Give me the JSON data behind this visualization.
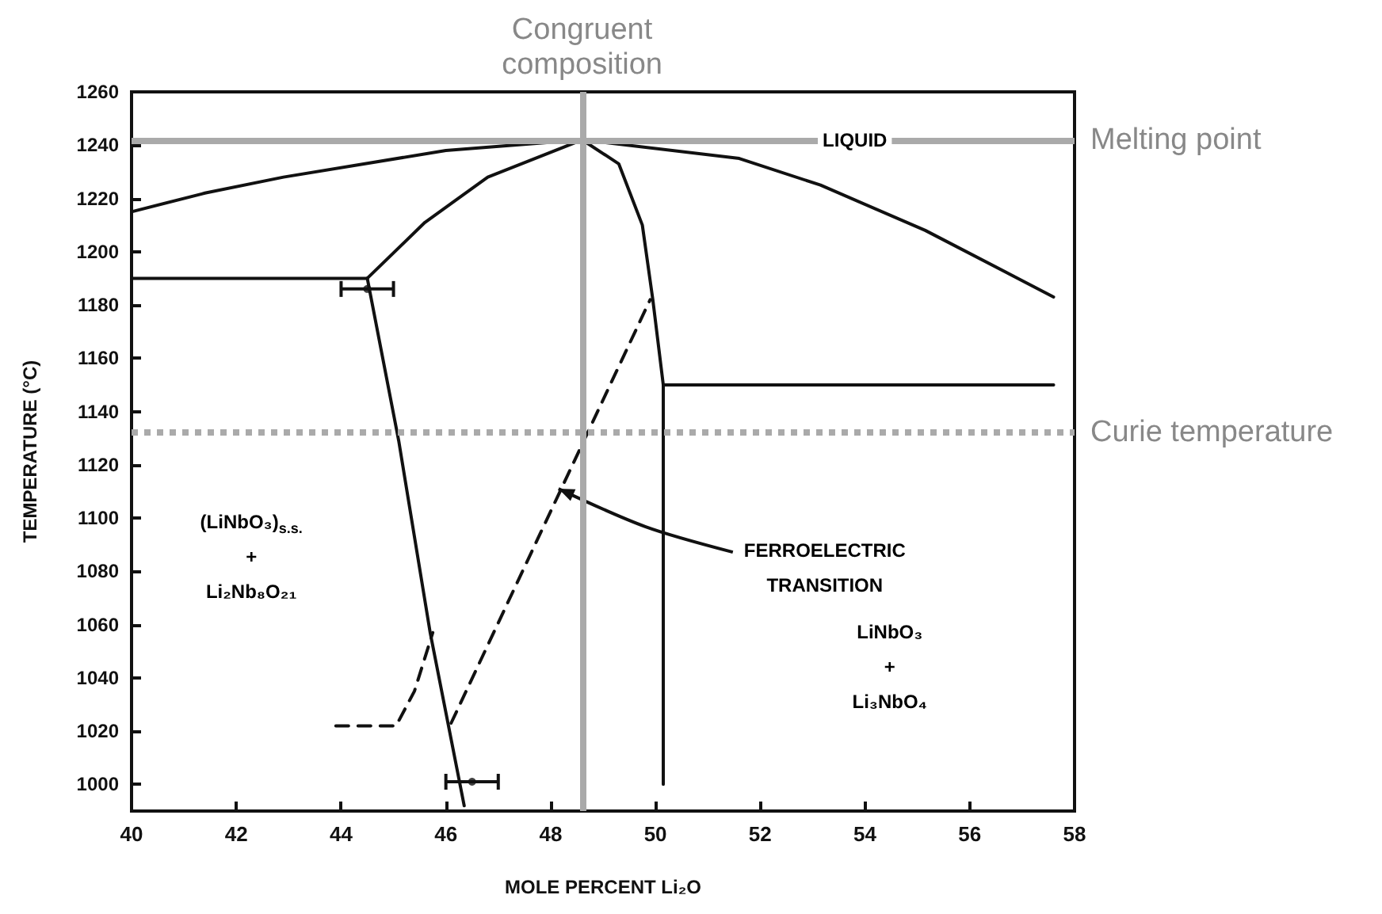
{
  "chart_data": {
    "type": "line",
    "xlabel": "MOLE PERCENT Li₂O",
    "ylabel": "TEMPERATURE (°C)",
    "xlim": [
      40,
      58
    ],
    "xticks": [
      40,
      42,
      44,
      46,
      48,
      50,
      52,
      54,
      56,
      58
    ],
    "ylim": [
      990,
      1260
    ],
    "yticks": [
      1000,
      1020,
      1040,
      1060,
      1080,
      1100,
      1120,
      1140,
      1160,
      1180,
      1200,
      1220,
      1240,
      1260
    ],
    "grid": false,
    "marker": "none",
    "line_style": "solid",
    "series": [
      {
        "color": "#111111",
        "x": [
          40,
          41.4,
          42.9,
          46,
          48.6,
          51.6,
          53.15,
          55.15,
          57.6
        ],
        "values": [
          1215,
          1222,
          1228,
          1238,
          1242,
          1235,
          1225,
          1208,
          1183
        ]
      },
      {
        "color": "#111111",
        "x": [
          44.5,
          45.6,
          46.8,
          48.6
        ],
        "values": [
          1190,
          1211,
          1228,
          1242
        ]
      },
      {
        "color": "#111111",
        "x": [
          40,
          44.5
        ],
        "values": [
          1190,
          1190
        ]
      },
      {
        "color": "#111111",
        "x": [
          44.5,
          45.1,
          45.7,
          46.35
        ],
        "values": [
          1190,
          1129,
          1057,
          992
        ]
      },
      {
        "color": "#111111",
        "x": [
          48.6,
          49.3,
          49.75,
          49.95,
          50.15,
          50.15
        ],
        "values": [
          1242,
          1233,
          1210,
          1182,
          1150,
          1000
        ]
      },
      {
        "color": "#111111",
        "x": [
          50.15,
          57.6
        ],
        "values": [
          1150,
          1150
        ]
      },
      {
        "color": "#111111",
        "line_style": "dashed",
        "x": [
          43.9,
          45.05,
          45.4,
          45.75
        ],
        "values": [
          1022,
          1022,
          1035,
          1057
        ]
      },
      {
        "color": "#111111",
        "line_style": "dashed",
        "x": [
          46.1,
          49.9
        ],
        "values": [
          1023,
          1182
        ]
      },
      {
        "type": "scatter",
        "color": "#111111",
        "marker": "circle",
        "x": [
          44.5,
          46.5
        ],
        "values": [
          1186,
          1001
        ],
        "xerrors": [
          0.5,
          0.5
        ]
      }
    ],
    "ref_lines": [
      {
        "axis": "x",
        "value": 48.6,
        "label": "Congruent\ncomposition",
        "color": "#aaaaaa",
        "line_style": "solid"
      },
      {
        "axis": "y",
        "value": 1242,
        "label": "Melting point",
        "color": "#aaaaaa",
        "line_style": "solid"
      },
      {
        "axis": "y",
        "value": 1132,
        "label": "Curie temperature",
        "color": "#aaaaaa",
        "line_style": "dotted"
      }
    ],
    "annotations": [
      "LIQUID",
      "(LiNbO₃)$_{s.s.}$\n+\nLi₂Nb₈O₂₁",
      "LiNbO₃\n+\nLi₃NbO₄",
      {
        "text": "FERROELECTRIC\nTRANSITION",
        "x": 48.15,
        "y": 1111
      }
    ]
  }
}
